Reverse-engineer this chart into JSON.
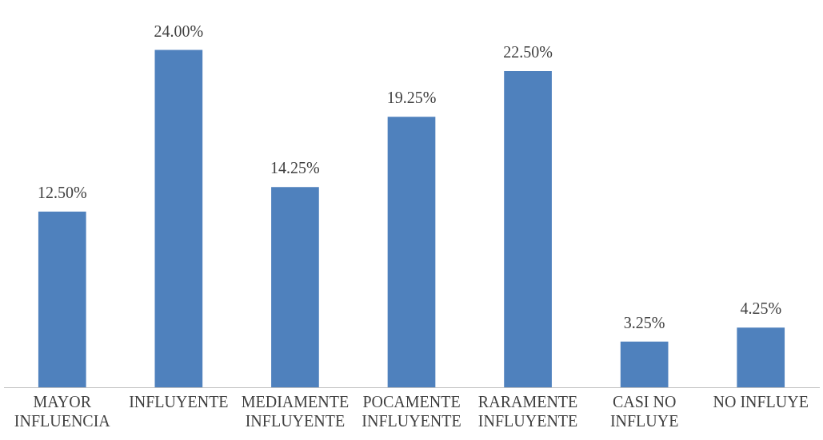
{
  "chart_data": {
    "type": "bar",
    "categories": [
      "MAYOR INFLUENCIA",
      "INFLUYENTE",
      "MEDIAMENTE INFLUYENTE",
      "POCAMENTE INFLUYENTE",
      "RARAMENTE INFLUYENTE",
      "CASI NO INFLUYE",
      "NO INFLUYE"
    ],
    "values": [
      12.5,
      24,
      14.25,
      19.25,
      22.5,
      3.25,
      4.25
    ],
    "value_labels": [
      "12.50%",
      "24.00%",
      "14.25%",
      "19.25%",
      "22.50%",
      "3.25%",
      "4.25%"
    ],
    "color": "#4f81bd",
    "grid": false,
    "legend": false
  }
}
